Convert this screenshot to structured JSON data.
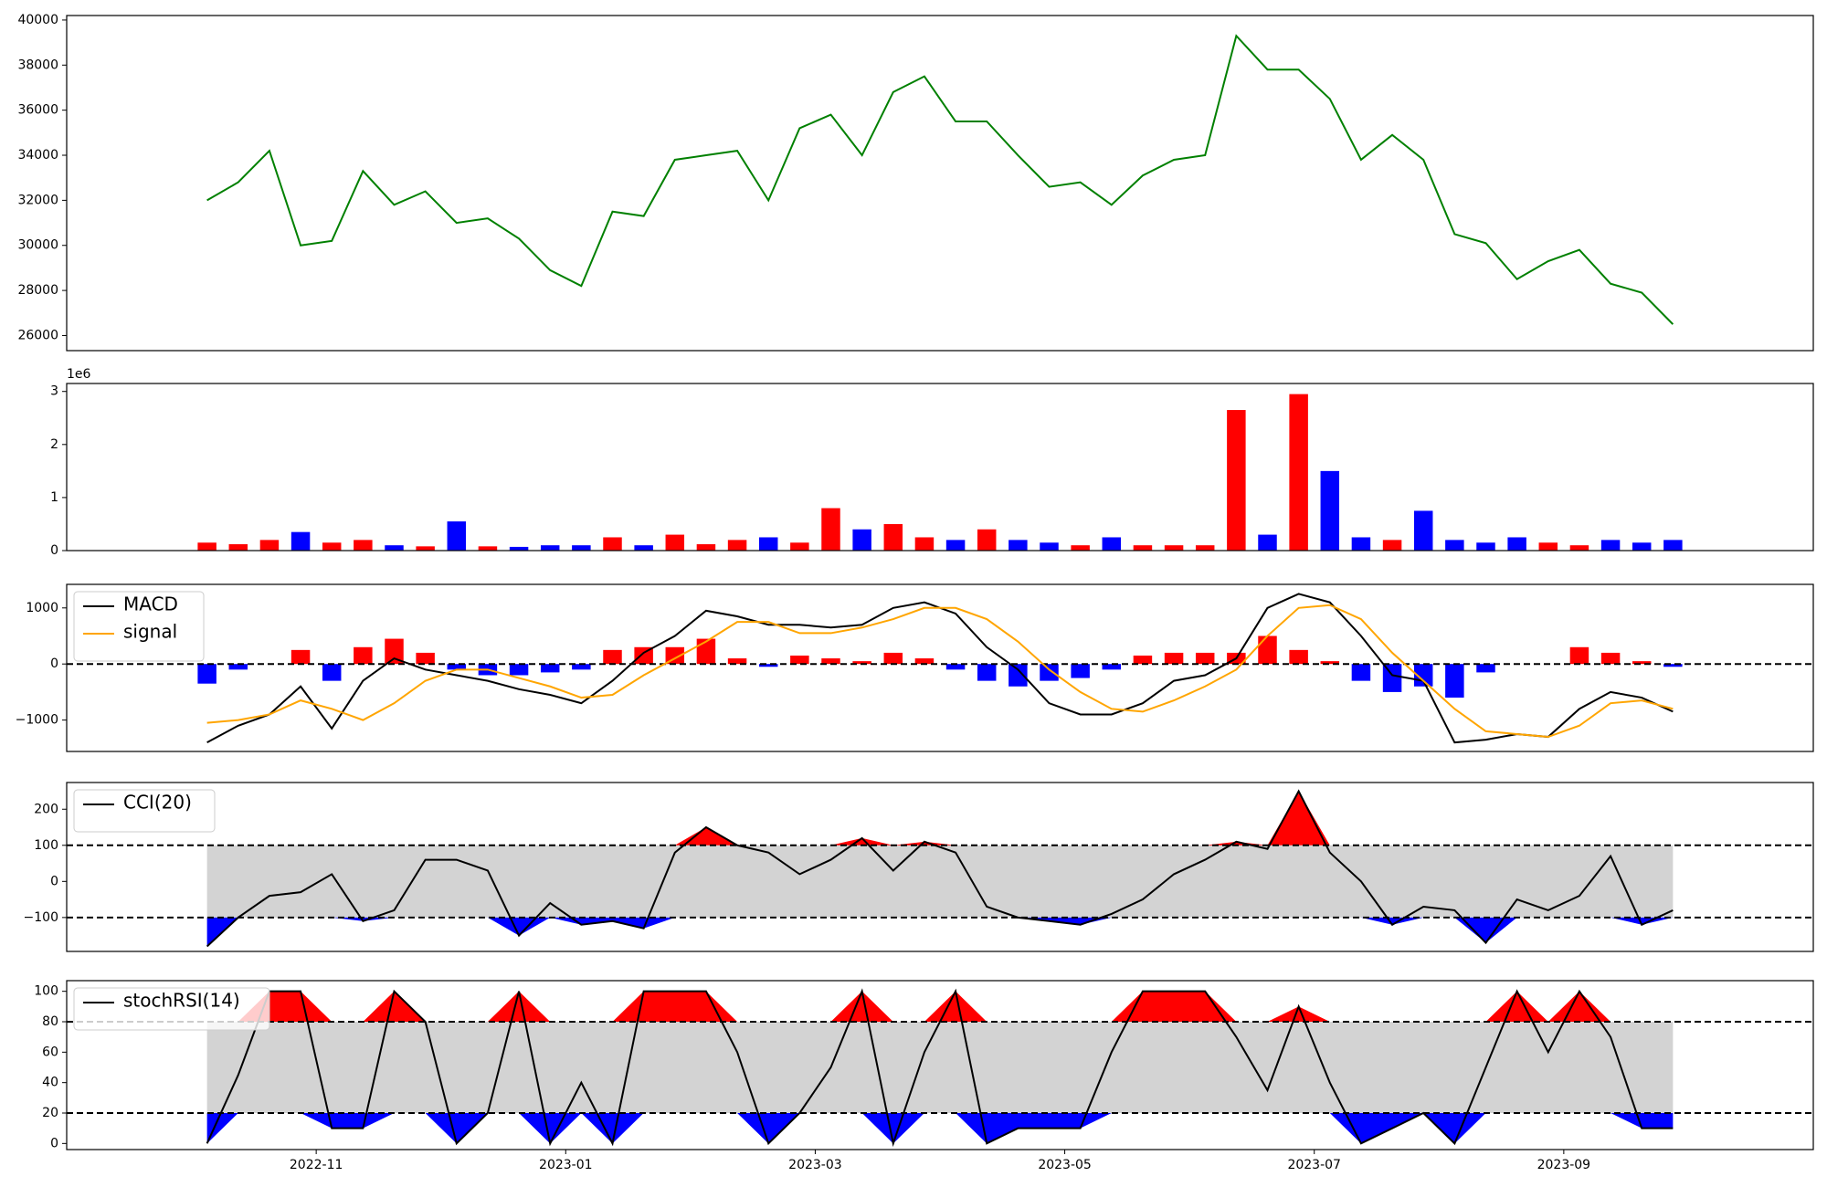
{
  "chart_data": [
    {
      "type": "line",
      "color": "#008000",
      "x": [
        "2022-10",
        "2022-10",
        "2022-10",
        "2022-10",
        "2022-11",
        "2022-11",
        "2022-11",
        "2022-11",
        "2022-12",
        "2022-12",
        "2022-12",
        "2022-12",
        "2023-01",
        "2023-01",
        "2023-01",
        "2023-01",
        "2023-02",
        "2023-02",
        "2023-02",
        "2023-02",
        "2023-03",
        "2023-03",
        "2023-03",
        "2023-03",
        "2023-04",
        "2023-04",
        "2023-04",
        "2023-04",
        "2023-05",
        "2023-05",
        "2023-05",
        "2023-05",
        "2023-06",
        "2023-06",
        "2023-06",
        "2023-06",
        "2023-07",
        "2023-07",
        "2023-07",
        "2023-07",
        "2023-08",
        "2023-08",
        "2023-08",
        "2023-08",
        "2023-09",
        "2023-09",
        "2023-09",
        "2023-09"
      ],
      "values": [
        32000,
        32800,
        34200,
        30000,
        30200,
        33300,
        31800,
        32400,
        31000,
        31200,
        30300,
        28900,
        28200,
        31500,
        31300,
        33800,
        34000,
        34200,
        32000,
        35200,
        35800,
        34000,
        36800,
        37500,
        35500,
        35500,
        34000,
        32600,
        32800,
        31800,
        33100,
        33800,
        34000,
        39300,
        37800,
        37800,
        36500,
        33800,
        34900,
        33800,
        30500,
        30100,
        28500,
        29300,
        29800,
        28300,
        27900,
        26500
      ],
      "xlim": [
        "2022-09",
        "2023-11"
      ],
      "ylim": [
        25330,
        40200
      ],
      "yticks": [
        26000,
        28000,
        30000,
        32000,
        34000,
        36000,
        38000,
        40000
      ]
    },
    {
      "type": "bar",
      "up_color": "#ff0000",
      "down_color": "#0000ff",
      "y_offset_label": "1e6",
      "x": [
        "2022-10",
        "2022-10",
        "2022-10",
        "2022-10",
        "2022-11",
        "2022-11",
        "2022-11",
        "2022-11",
        "2022-12",
        "2022-12",
        "2022-12",
        "2022-12",
        "2023-01",
        "2023-01",
        "2023-01",
        "2023-01",
        "2023-02",
        "2023-02",
        "2023-02",
        "2023-02",
        "2023-03",
        "2023-03",
        "2023-03",
        "2023-03",
        "2023-04",
        "2023-04",
        "2023-04",
        "2023-04",
        "2023-05",
        "2023-05",
        "2023-05",
        "2023-05",
        "2023-06",
        "2023-06",
        "2023-06",
        "2023-06",
        "2023-07",
        "2023-07",
        "2023-07",
        "2023-07",
        "2023-08",
        "2023-08",
        "2023-08",
        "2023-08",
        "2023-09",
        "2023-09",
        "2023-09",
        "2023-09"
      ],
      "values": [
        0.15,
        0.12,
        0.2,
        0.35,
        0.15,
        0.2,
        0.1,
        0.08,
        0.55,
        0.08,
        0.07,
        0.1,
        0.1,
        0.25,
        0.1,
        0.3,
        0.12,
        0.2,
        0.25,
        0.15,
        0.8,
        0.4,
        0.5,
        0.25,
        0.2,
        0.4,
        0.2,
        0.15,
        0.1,
        0.25,
        0.1,
        0.1,
        0.1,
        2.65,
        0.3,
        2.95,
        1.5,
        0.25,
        0.2,
        0.75,
        0.2,
        0.15,
        0.25,
        0.15,
        0.1,
        0.2,
        0.15,
        0.2
      ],
      "xlim": [
        "2022-09",
        "2023-11"
      ],
      "ylim": [
        0,
        3.15
      ],
      "yticks": [
        0,
        1,
        2,
        3
      ]
    },
    {
      "type": "macd",
      "x": [
        "2022-10",
        "2022-10",
        "2022-10",
        "2022-10",
        "2022-11",
        "2022-11",
        "2022-11",
        "2022-11",
        "2022-12",
        "2022-12",
        "2022-12",
        "2022-12",
        "2023-01",
        "2023-01",
        "2023-01",
        "2023-01",
        "2023-02",
        "2023-02",
        "2023-02",
        "2023-02",
        "2023-03",
        "2023-03",
        "2023-03",
        "2023-03",
        "2023-04",
        "2023-04",
        "2023-04",
        "2023-04",
        "2023-05",
        "2023-05",
        "2023-05",
        "2023-05",
        "2023-06",
        "2023-06",
        "2023-06",
        "2023-06",
        "2023-07",
        "2023-07",
        "2023-07",
        "2023-07",
        "2023-08",
        "2023-08",
        "2023-08",
        "2023-08",
        "2023-09",
        "2023-09",
        "2023-09",
        "2023-09"
      ],
      "series": [
        {
          "name": "MACD",
          "color": "#000000",
          "values": [
            -1400,
            -1100,
            -900,
            -400,
            -1150,
            -300,
            100,
            -100,
            -200,
            -300,
            -450,
            -550,
            -700,
            -300,
            200,
            500,
            950,
            850,
            700,
            700,
            650,
            700,
            1000,
            1100,
            900,
            300,
            -100,
            -700,
            -900,
            -900,
            -700,
            -300,
            -200,
            100,
            1000,
            1250,
            1100,
            500,
            -200,
            -300,
            -1400,
            -1350,
            -1250,
            -1300,
            -800,
            -500,
            -600,
            -850
          ]
        },
        {
          "name": "signal",
          "color": "#ffa500",
          "values": [
            -1050,
            -1000,
            -900,
            -650,
            -800,
            -1000,
            -700,
            -300,
            -100,
            -100,
            -250,
            -400,
            -600,
            -550,
            -200,
            100,
            400,
            750,
            750,
            550,
            550,
            650,
            800,
            1000,
            1000,
            800,
            400,
            -100,
            -500,
            -800,
            -850,
            -650,
            -400,
            -100,
            500,
            1000,
            1050,
            800,
            200,
            -300,
            -800,
            -1200,
            -1250,
            -1300,
            -1100,
            -700,
            -650,
            -800
          ]
        }
      ],
      "histogram": {
        "up_color": "#ff0000",
        "down_color": "#0000ff",
        "values": [
          -350,
          -100,
          0,
          250,
          -300,
          300,
          450,
          200,
          -100,
          -200,
          -200,
          -150,
          -100,
          250,
          300,
          300,
          450,
          100,
          -50,
          150,
          100,
          50,
          200,
          100,
          -100,
          -300,
          -400,
          -300,
          -250,
          -100,
          150,
          200,
          200,
          200,
          500,
          250,
          50,
          -300,
          -500,
          -400,
          -600,
          -150,
          0,
          0,
          300,
          200,
          50,
          -50
        ]
      },
      "levels": [
        0
      ],
      "xlim": [
        "2022-09",
        "2023-11"
      ],
      "ylim": [
        -1560,
        1420
      ],
      "yticks": [
        {
          "value": -1000,
          "label": "−1000"
        },
        0,
        1000
      ]
    },
    {
      "type": "oscillator",
      "band_color": "#d3d3d3",
      "high_color": "#ff0000",
      "low_color": "#0000ff",
      "x": [
        "2022-10",
        "2022-10",
        "2022-10",
        "2022-10",
        "2022-11",
        "2022-11",
        "2022-11",
        "2022-11",
        "2022-12",
        "2022-12",
        "2022-12",
        "2022-12",
        "2023-01",
        "2023-01",
        "2023-01",
        "2023-01",
        "2023-02",
        "2023-02",
        "2023-02",
        "2023-02",
        "2023-03",
        "2023-03",
        "2023-03",
        "2023-03",
        "2023-04",
        "2023-04",
        "2023-04",
        "2023-04",
        "2023-05",
        "2023-05",
        "2023-05",
        "2023-05",
        "2023-06",
        "2023-06",
        "2023-06",
        "2023-06",
        "2023-07",
        "2023-07",
        "2023-07",
        "2023-07",
        "2023-08",
        "2023-08",
        "2023-08",
        "2023-08",
        "2023-09",
        "2023-09",
        "2023-09",
        "2023-09"
      ],
      "series": [
        {
          "name": "CCI(20)",
          "color": "#000000",
          "values": [
            -180,
            -100,
            -40,
            -30,
            20,
            -110,
            -80,
            60,
            60,
            30,
            -150,
            -60,
            -120,
            -110,
            -130,
            80,
            150,
            100,
            80,
            20,
            60,
            120,
            30,
            110,
            80,
            -70,
            -100,
            -110,
            -120,
            -90,
            -50,
            20,
            60,
            110,
            90,
            250,
            80,
            0,
            -120,
            -70,
            -80,
            -170,
            -50,
            -80,
            -40,
            70,
            -120,
            -80
          ]
        }
      ],
      "levels": [
        -100,
        100
      ],
      "xlim": [
        "2022-09",
        "2023-11"
      ],
      "ylim": [
        -194,
        274
      ],
      "yticks": [
        {
          "value": -100,
          "label": "−100"
        },
        0,
        100,
        200
      ]
    },
    {
      "type": "oscillator",
      "band_color": "#d3d3d3",
      "high_color": "#ff0000",
      "low_color": "#0000ff",
      "x": [
        "2022-10",
        "2022-10",
        "2022-10",
        "2022-10",
        "2022-11",
        "2022-11",
        "2022-11",
        "2022-11",
        "2022-12",
        "2022-12",
        "2022-12",
        "2022-12",
        "2023-01",
        "2023-01",
        "2023-01",
        "2023-01",
        "2023-02",
        "2023-02",
        "2023-02",
        "2023-02",
        "2023-03",
        "2023-03",
        "2023-03",
        "2023-03",
        "2023-04",
        "2023-04",
        "2023-04",
        "2023-04",
        "2023-05",
        "2023-05",
        "2023-05",
        "2023-05",
        "2023-06",
        "2023-06",
        "2023-06",
        "2023-06",
        "2023-07",
        "2023-07",
        "2023-07",
        "2023-07",
        "2023-08",
        "2023-08",
        "2023-08",
        "2023-08",
        "2023-09",
        "2023-09",
        "2023-09",
        "2023-09"
      ],
      "series": [
        {
          "name": "stochRSI(14)",
          "color": "#000000",
          "values": [
            0,
            45,
            100,
            100,
            10,
            10,
            100,
            80,
            0,
            20,
            100,
            0,
            40,
            0,
            100,
            100,
            100,
            60,
            0,
            20,
            50,
            100,
            0,
            60,
            100,
            0,
            10,
            10,
            10,
            60,
            100,
            100,
            100,
            70,
            35,
            90,
            40,
            0,
            10,
            20,
            0,
            50,
            100,
            60,
            100,
            70,
            10,
            10
          ]
        }
      ],
      "levels": [
        20,
        80
      ],
      "xlim": [
        "2022-09",
        "2023-11"
      ],
      "ylim": [
        -4,
        107
      ],
      "yticks": [
        0,
        20,
        40,
        60,
        80,
        100
      ],
      "xticks": [
        "2022-11",
        "2023-01",
        "2023-03",
        "2023-05",
        "2023-07",
        "2023-09"
      ]
    }
  ]
}
